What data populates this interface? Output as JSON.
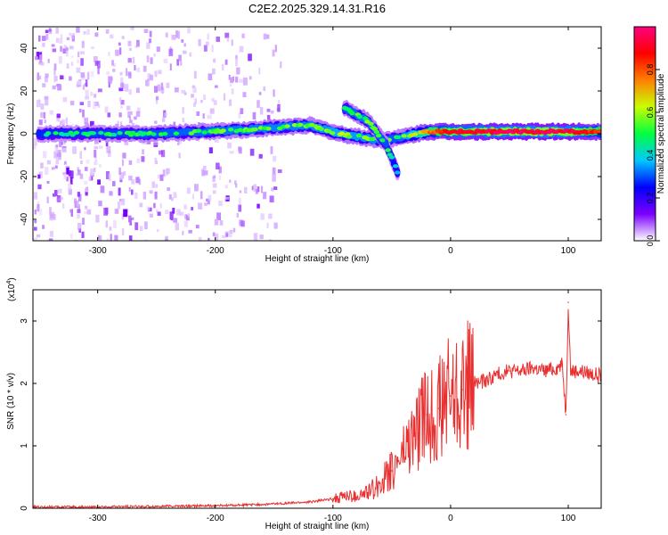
{
  "title": "C2E2.2025.329.14.31.R16",
  "chart_data": [
    {
      "type": "heatmap",
      "xlabel": "Height of straight line (km)",
      "ylabel": "Frequency (Hz)",
      "xlim": [
        -355,
        128
      ],
      "ylim": [
        -50,
        50
      ],
      "xticks": [
        -300,
        -200,
        -100,
        0,
        100
      ],
      "yticks": [
        -40,
        -20,
        0,
        20,
        40
      ],
      "colorbar": {
        "label": "Normalized spectral amplitude",
        "range": [
          0,
          1
        ],
        "ticks": [
          "0.0",
          "0.2",
          "0.4",
          "0.6",
          "0.8"
        ],
        "colors": [
          "#ffffff",
          "#7b00ff",
          "#0000ff",
          "#00c8ff",
          "#00ff40",
          "#c8ff00",
          "#ff8000",
          "#ff0000",
          "#ff0080"
        ]
      },
      "ridge": [
        {
          "x": -350,
          "y": 0,
          "amp": 0.45
        },
        {
          "x": -250,
          "y": 0,
          "amp": 0.5
        },
        {
          "x": -170,
          "y": 2,
          "amp": 0.55
        },
        {
          "x": -120,
          "y": 4,
          "amp": 0.55
        },
        {
          "x": -95,
          "y": 0,
          "amp": 0.6
        },
        {
          "x": -60,
          "y": -3,
          "amp": 0.55
        },
        {
          "x": -45,
          "y": -2,
          "amp": 0.5
        },
        {
          "x": -20,
          "y": 1,
          "amp": 0.75
        },
        {
          "x": 0,
          "y": 1,
          "amp": 0.9
        },
        {
          "x": 50,
          "y": 1,
          "amp": 0.95
        },
        {
          "x": 100,
          "y": 1,
          "amp": 0.95
        },
        {
          "x": 128,
          "y": 1,
          "amp": 0.8
        }
      ],
      "branch": [
        {
          "x": -90,
          "y": 12,
          "amp": 0.5
        },
        {
          "x": -70,
          "y": 6,
          "amp": 0.55
        },
        {
          "x": -55,
          "y": -5,
          "amp": 0.5
        },
        {
          "x": -45,
          "y": -18,
          "amp": 0.4
        }
      ]
    },
    {
      "type": "line",
      "xlabel": "Height of straight line (km)",
      "ylabel": "SNR (10 * v/v)",
      "yscale_label": "(x10",
      "yscale_exp": "4",
      "yscale_close": ")",
      "xlim": [
        -355,
        128
      ],
      "ylim": [
        0,
        3.5
      ],
      "xticks": [
        -300,
        -200,
        -100,
        0,
        100
      ],
      "yticks": [
        0,
        1,
        2,
        3
      ],
      "series": [
        {
          "name": "SNR",
          "color": "#e83030",
          "x": [
            -355,
            -300,
            -250,
            -200,
            -160,
            -140,
            -120,
            -100,
            -90,
            -80,
            -70,
            -60,
            -50,
            -40,
            -30,
            -20,
            -10,
            0,
            10,
            20,
            30,
            40,
            50,
            60,
            70,
            80,
            90,
            95,
            98,
            100,
            102,
            110,
            120,
            128
          ],
          "y": [
            0.02,
            0.02,
            0.03,
            0.04,
            0.06,
            0.08,
            0.1,
            0.15,
            0.2,
            0.18,
            0.25,
            0.4,
            0.6,
            0.9,
            1.2,
            1.5,
            1.6,
            1.8,
            1.9,
            2.0,
            2.05,
            2.15,
            2.2,
            2.2,
            2.25,
            2.2,
            2.25,
            2.3,
            1.5,
            3.3,
            2.2,
            2.2,
            2.15,
            2.12
          ]
        }
      ]
    }
  ]
}
